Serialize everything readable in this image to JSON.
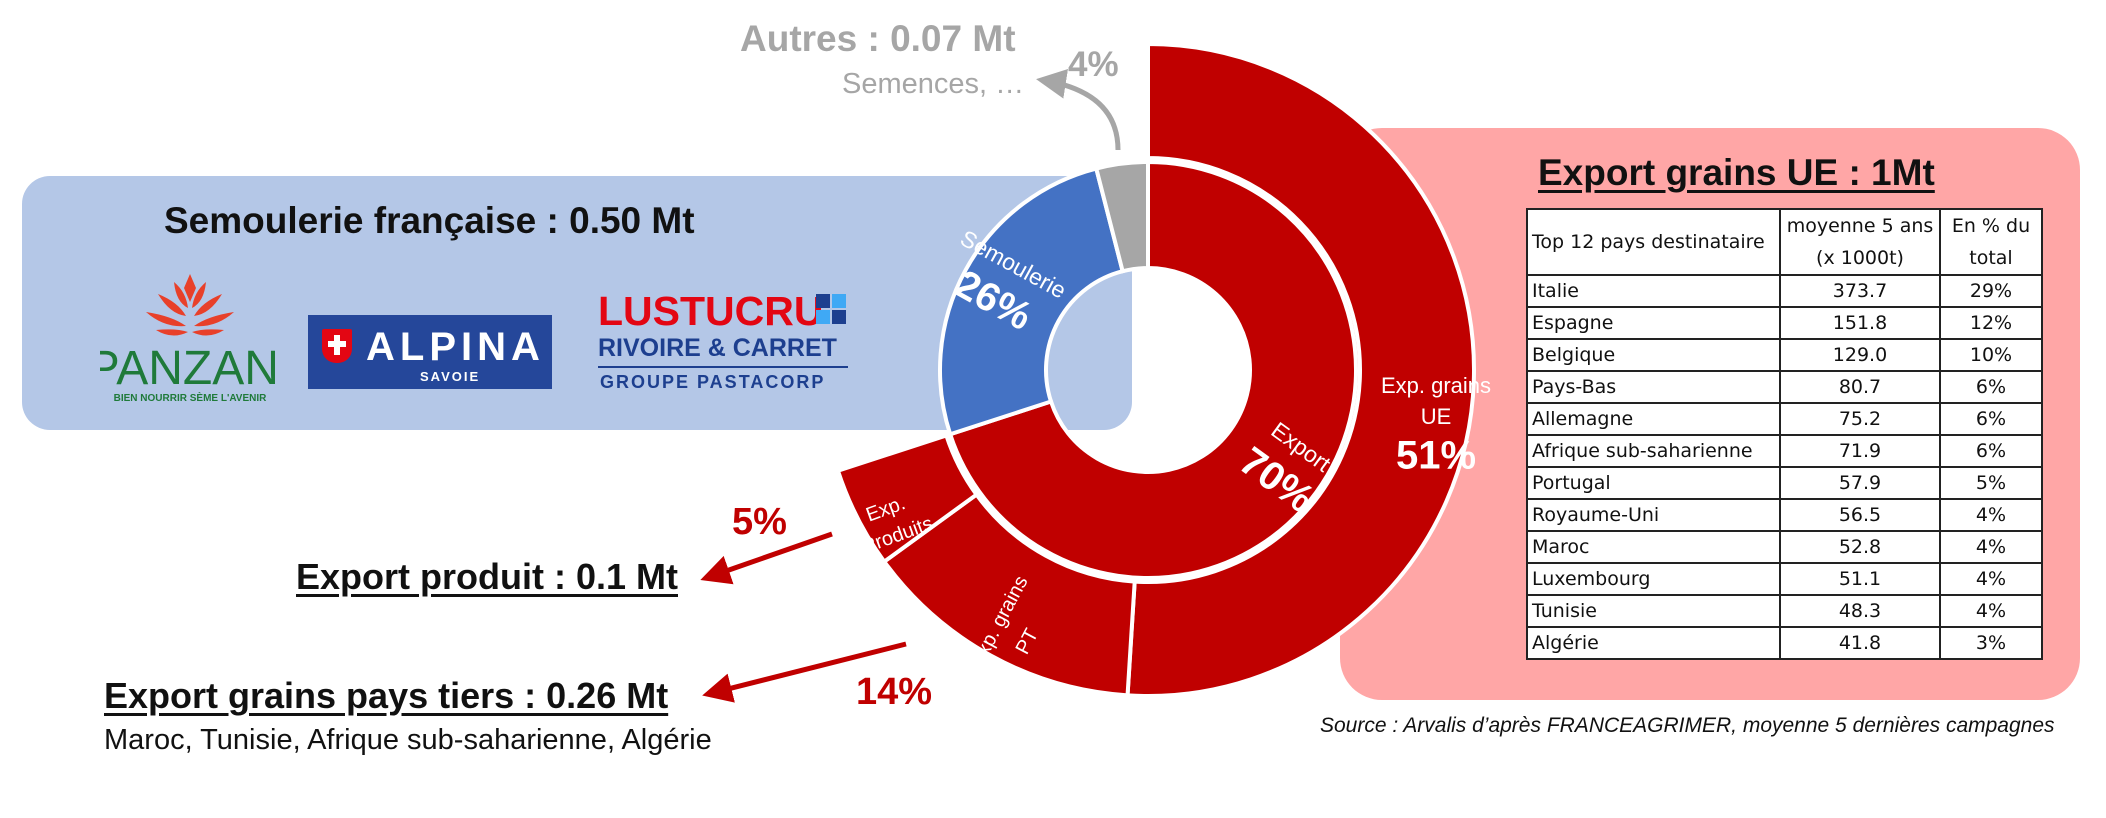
{
  "titles": {
    "semoulerie": "Semoulerie française : 0.50 Mt",
    "export_ue": "Export grains UE : 1Mt",
    "autres": "Autres : 0.07 Mt",
    "autres_sub": "Semences, …",
    "export_produit": "Export produit : 0.1 Mt",
    "export_pays_tiers": "Export grains pays tiers : 0.26 Mt",
    "export_pays_tiers_countries": "Maroc, Tunisie, Afrique sub-saharienne, Algérie",
    "source": "Source : Arvalis d’après FRANCEAGRIMER, moyenne 5 dernières campagnes"
  },
  "logos": {
    "panzani": {
      "name": "PANZANI",
      "tagline": "BIEN NOURRIR SÈME L'AVENIR"
    },
    "alpina": {
      "name": "ALPINA",
      "sub": "SAVOIE"
    },
    "lustucru": {
      "name": "LUSTUCRU",
      "sub": "RIVOIRE & CARRET",
      "groupe": "GROUPE PASTACORP"
    }
  },
  "colors": {
    "export_red": "#c00000",
    "semoulerie_blue": "#4472c4",
    "autres_grey": "#a6a6a6",
    "blue_panel": "#b4c7e7",
    "pink_panel": "#ffa6a6"
  },
  "chart_data": {
    "type": "sunburst",
    "inner_ring": [
      {
        "name": "Export",
        "value": 70,
        "label": "Export",
        "pct_label": "70%",
        "color": "#c00000"
      },
      {
        "name": "Semoulerie",
        "value": 26,
        "label": "Semoulerie",
        "pct_label": "26%",
        "color": "#4472c4"
      },
      {
        "name": "Autres",
        "value": 4,
        "label": "",
        "pct_label": "",
        "color": "#a6a6a6"
      }
    ],
    "outer_ring": [
      {
        "name": "Exp. grains UE",
        "value": 51,
        "label": [
          "Exp. grains",
          "UE"
        ],
        "pct_label": "51%",
        "parent": "Export",
        "color": "#c00000"
      },
      {
        "name": "Exp. grains PT",
        "value": 14,
        "label": [
          "Exp. grains",
          "PT"
        ],
        "pct_label": "14%",
        "parent": "Export",
        "color": "#c00000"
      },
      {
        "name": "Exp. Produits",
        "value": 5,
        "label": [
          "Exp.",
          "Produits"
        ],
        "pct_label": "5%",
        "parent": "Export",
        "color": "#c00000"
      }
    ],
    "external_pct_labels": {
      "autres": "4%",
      "exp_produits": "5%",
      "exp_grains_pt": "14%"
    }
  },
  "table": {
    "headers": [
      "Top 12 pays destinataire",
      "moyenne 5 ans\n(x 1000t)",
      "En % du\ntotal"
    ],
    "rows": [
      [
        "Italie",
        "373.7",
        "29%"
      ],
      [
        "Espagne",
        "151.8",
        "12%"
      ],
      [
        "Belgique",
        "129.0",
        "10%"
      ],
      [
        "Pays-Bas",
        "80.7",
        "6%"
      ],
      [
        "Allemagne",
        "75.2",
        "6%"
      ],
      [
        "Afrique sub-saharienne",
        "71.9",
        "6%"
      ],
      [
        "Portugal",
        "57.9",
        "5%"
      ],
      [
        "Royaume-Uni",
        "56.5",
        "4%"
      ],
      [
        "Maroc",
        "52.8",
        "4%"
      ],
      [
        "Luxembourg",
        "51.1",
        "4%"
      ],
      [
        "Tunisie",
        "48.3",
        "4%"
      ],
      [
        "Algérie",
        "41.8",
        "3%"
      ]
    ]
  }
}
